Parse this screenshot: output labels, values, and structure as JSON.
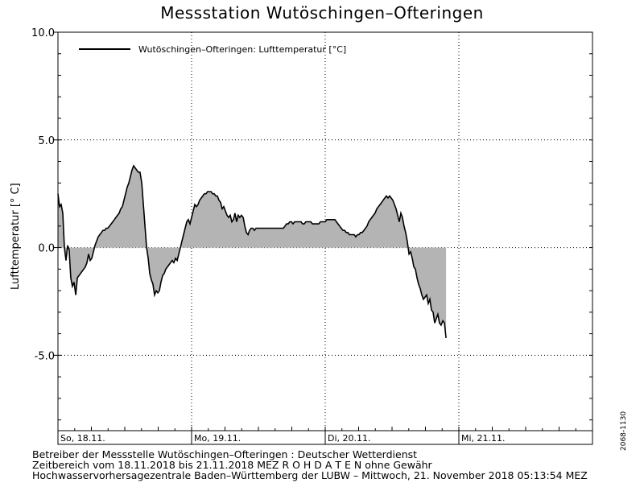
{
  "title": "Messstation Wutöschingen–Ofteringen",
  "chart_data": {
    "type": "area",
    "ylabel": "Lufttemperatur [° C]",
    "ylim": [
      -8.5,
      10.0
    ],
    "yticks": [
      {
        "value": 10.0,
        "label": "10.0"
      },
      {
        "value": 5.0,
        "label": "5.0"
      },
      {
        "value": 0.0,
        "label": "0.0"
      },
      {
        "value": -5.0,
        "label": "-5.0"
      }
    ],
    "xlim": [
      0,
      4.0
    ],
    "x_unit": "days since So, 18.11. 00:00 (MEZ)",
    "day_labels": [
      {
        "x": 0,
        "label": "So, 18.11."
      },
      {
        "x": 1,
        "label": "Mo, 19.11."
      },
      {
        "x": 2,
        "label": "Di, 20.11."
      },
      {
        "x": 3,
        "label": "Mi, 21.11."
      }
    ],
    "grid": true,
    "legend": {
      "position": "top-left",
      "entries": [
        "Wutöschingen–Ofteringen: Lufttemperatur  [°C]"
      ]
    },
    "series": [
      {
        "name": "Wutöschingen–Ofteringen: Lufttemperatur  [°C]",
        "fill": "#b4b4b4",
        "values": [
          [
            0.0,
            2.5
          ],
          [
            0.012,
            1.9
          ],
          [
            0.024,
            2.0
          ],
          [
            0.036,
            1.6
          ],
          [
            0.048,
            0.0
          ],
          [
            0.06,
            -0.6
          ],
          [
            0.072,
            0.1
          ],
          [
            0.084,
            -0.1
          ],
          [
            0.096,
            -1.4
          ],
          [
            0.108,
            -1.8
          ],
          [
            0.12,
            -1.6
          ],
          [
            0.133,
            -2.2
          ],
          [
            0.145,
            -1.4
          ],
          [
            0.157,
            -1.3
          ],
          [
            0.169,
            -1.2
          ],
          [
            0.181,
            -1.1
          ],
          [
            0.193,
            -1.0
          ],
          [
            0.205,
            -0.9
          ],
          [
            0.217,
            -0.7
          ],
          [
            0.229,
            -0.3
          ],
          [
            0.241,
            -0.6
          ],
          [
            0.253,
            -0.5
          ],
          [
            0.265,
            -0.2
          ],
          [
            0.277,
            0.1
          ],
          [
            0.289,
            0.3
          ],
          [
            0.301,
            0.5
          ],
          [
            0.313,
            0.6
          ],
          [
            0.325,
            0.7
          ],
          [
            0.337,
            0.8
          ],
          [
            0.349,
            0.8
          ],
          [
            0.361,
            0.9
          ],
          [
            0.373,
            0.9
          ],
          [
            0.386,
            1.0
          ],
          [
            0.398,
            1.1
          ],
          [
            0.41,
            1.2
          ],
          [
            0.422,
            1.3
          ],
          [
            0.434,
            1.4
          ],
          [
            0.446,
            1.5
          ],
          [
            0.458,
            1.6
          ],
          [
            0.47,
            1.8
          ],
          [
            0.482,
            1.9
          ],
          [
            0.494,
            2.2
          ],
          [
            0.506,
            2.5
          ],
          [
            0.518,
            2.8
          ],
          [
            0.53,
            3.0
          ],
          [
            0.542,
            3.3
          ],
          [
            0.554,
            3.6
          ],
          [
            0.566,
            3.8
          ],
          [
            0.578,
            3.7
          ],
          [
            0.59,
            3.6
          ],
          [
            0.602,
            3.5
          ],
          [
            0.614,
            3.5
          ],
          [
            0.627,
            3.0
          ],
          [
            0.639,
            2.0
          ],
          [
            0.651,
            1.0
          ],
          [
            0.663,
            0.0
          ],
          [
            0.675,
            -0.5
          ],
          [
            0.687,
            -1.2
          ],
          [
            0.699,
            -1.5
          ],
          [
            0.711,
            -1.7
          ],
          [
            0.723,
            -2.2
          ],
          [
            0.735,
            -2.0
          ],
          [
            0.747,
            -2.1
          ],
          [
            0.759,
            -2.0
          ],
          [
            0.771,
            -1.6
          ],
          [
            0.783,
            -1.3
          ],
          [
            0.795,
            -1.2
          ],
          [
            0.807,
            -1.0
          ],
          [
            0.819,
            -0.9
          ],
          [
            0.831,
            -0.8
          ],
          [
            0.843,
            -0.7
          ],
          [
            0.855,
            -0.6
          ],
          [
            0.867,
            -0.7
          ],
          [
            0.88,
            -0.5
          ],
          [
            0.892,
            -0.6
          ],
          [
            0.904,
            -0.3
          ],
          [
            0.916,
            0.0
          ],
          [
            0.928,
            0.3
          ],
          [
            0.94,
            0.6
          ],
          [
            0.952,
            0.9
          ],
          [
            0.964,
            1.2
          ],
          [
            0.976,
            1.3
          ],
          [
            0.988,
            1.1
          ],
          [
            1.0,
            1.4
          ],
          [
            1.012,
            1.7
          ],
          [
            1.024,
            2.0
          ],
          [
            1.036,
            1.9
          ],
          [
            1.048,
            2.0
          ],
          [
            1.06,
            2.2
          ],
          [
            1.072,
            2.3
          ],
          [
            1.084,
            2.4
          ],
          [
            1.096,
            2.5
          ],
          [
            1.108,
            2.5
          ],
          [
            1.12,
            2.6
          ],
          [
            1.133,
            2.6
          ],
          [
            1.145,
            2.6
          ],
          [
            1.157,
            2.5
          ],
          [
            1.169,
            2.5
          ],
          [
            1.181,
            2.4
          ],
          [
            1.193,
            2.4
          ],
          [
            1.205,
            2.2
          ],
          [
            1.217,
            2.1
          ],
          [
            1.229,
            1.8
          ],
          [
            1.241,
            1.9
          ],
          [
            1.253,
            1.7
          ],
          [
            1.265,
            1.5
          ],
          [
            1.277,
            1.4
          ],
          [
            1.289,
            1.5
          ],
          [
            1.301,
            1.2
          ],
          [
            1.313,
            1.3
          ],
          [
            1.325,
            1.6
          ],
          [
            1.337,
            1.2
          ],
          [
            1.349,
            1.5
          ],
          [
            1.361,
            1.4
          ],
          [
            1.373,
            1.5
          ],
          [
            1.386,
            1.4
          ],
          [
            1.398,
            1.0
          ],
          [
            1.41,
            0.7
          ],
          [
            1.422,
            0.6
          ],
          [
            1.434,
            0.8
          ],
          [
            1.446,
            0.9
          ],
          [
            1.458,
            0.9
          ],
          [
            1.47,
            0.8
          ],
          [
            1.482,
            0.9
          ],
          [
            1.494,
            0.9
          ],
          [
            1.506,
            0.9
          ],
          [
            1.518,
            0.9
          ],
          [
            1.53,
            0.9
          ],
          [
            1.542,
            0.9
          ],
          [
            1.554,
            0.9
          ],
          [
            1.566,
            0.9
          ],
          [
            1.578,
            0.9
          ],
          [
            1.59,
            0.9
          ],
          [
            1.602,
            0.9
          ],
          [
            1.614,
            0.9
          ],
          [
            1.627,
            0.9
          ],
          [
            1.639,
            0.9
          ],
          [
            1.651,
            0.9
          ],
          [
            1.663,
            0.9
          ],
          [
            1.675,
            0.9
          ],
          [
            1.687,
            0.9
          ],
          [
            1.699,
            1.0
          ],
          [
            1.711,
            1.1
          ],
          [
            1.723,
            1.1
          ],
          [
            1.735,
            1.2
          ],
          [
            1.747,
            1.2
          ],
          [
            1.759,
            1.1
          ],
          [
            1.771,
            1.2
          ],
          [
            1.783,
            1.2
          ],
          [
            1.795,
            1.2
          ],
          [
            1.807,
            1.2
          ],
          [
            1.819,
            1.2
          ],
          [
            1.831,
            1.1
          ],
          [
            1.843,
            1.1
          ],
          [
            1.855,
            1.2
          ],
          [
            1.867,
            1.2
          ],
          [
            1.88,
            1.2
          ],
          [
            1.892,
            1.2
          ],
          [
            1.904,
            1.1
          ],
          [
            1.916,
            1.1
          ],
          [
            1.928,
            1.1
          ],
          [
            1.94,
            1.1
          ],
          [
            1.952,
            1.1
          ],
          [
            1.964,
            1.2
          ],
          [
            1.976,
            1.2
          ],
          [
            1.988,
            1.2
          ],
          [
            2.0,
            1.2
          ],
          [
            2.012,
            1.3
          ],
          [
            2.024,
            1.3
          ],
          [
            2.036,
            1.3
          ],
          [
            2.048,
            1.3
          ],
          [
            2.06,
            1.3
          ],
          [
            2.072,
            1.3
          ],
          [
            2.084,
            1.2
          ],
          [
            2.096,
            1.1
          ],
          [
            2.108,
            1.0
          ],
          [
            2.12,
            0.9
          ],
          [
            2.133,
            0.8
          ],
          [
            2.145,
            0.8
          ],
          [
            2.157,
            0.7
          ],
          [
            2.169,
            0.7
          ],
          [
            2.181,
            0.6
          ],
          [
            2.193,
            0.6
          ],
          [
            2.205,
            0.6
          ],
          [
            2.217,
            0.6
          ],
          [
            2.229,
            0.5
          ],
          [
            2.241,
            0.6
          ],
          [
            2.253,
            0.6
          ],
          [
            2.265,
            0.7
          ],
          [
            2.277,
            0.7
          ],
          [
            2.289,
            0.8
          ],
          [
            2.301,
            0.9
          ],
          [
            2.313,
            1.0
          ],
          [
            2.325,
            1.2
          ],
          [
            2.337,
            1.3
          ],
          [
            2.349,
            1.4
          ],
          [
            2.361,
            1.5
          ],
          [
            2.373,
            1.6
          ],
          [
            2.386,
            1.8
          ],
          [
            2.398,
            1.9
          ],
          [
            2.41,
            2.0
          ],
          [
            2.422,
            2.1
          ],
          [
            2.434,
            2.2
          ],
          [
            2.446,
            2.3
          ],
          [
            2.458,
            2.4
          ],
          [
            2.47,
            2.3
          ],
          [
            2.482,
            2.4
          ],
          [
            2.494,
            2.3
          ],
          [
            2.506,
            2.2
          ],
          [
            2.518,
            2.0
          ],
          [
            2.53,
            1.8
          ],
          [
            2.542,
            1.5
          ],
          [
            2.554,
            1.2
          ],
          [
            2.566,
            1.6
          ],
          [
            2.578,
            1.4
          ],
          [
            2.59,
            1.0
          ],
          [
            2.602,
            0.7
          ],
          [
            2.614,
            0.3
          ],
          [
            2.627,
            -0.3
          ],
          [
            2.639,
            -0.2
          ],
          [
            2.651,
            -0.5
          ],
          [
            2.663,
            -0.9
          ],
          [
            2.675,
            -1.0
          ],
          [
            2.687,
            -1.4
          ],
          [
            2.699,
            -1.7
          ],
          [
            2.711,
            -1.9
          ],
          [
            2.723,
            -2.2
          ],
          [
            2.735,
            -2.4
          ],
          [
            2.747,
            -2.3
          ],
          [
            2.759,
            -2.2
          ],
          [
            2.771,
            -2.6
          ],
          [
            2.783,
            -2.4
          ],
          [
            2.795,
            -2.9
          ],
          [
            2.807,
            -3.0
          ],
          [
            2.819,
            -3.5
          ],
          [
            2.831,
            -3.3
          ],
          [
            2.843,
            -3.1
          ],
          [
            2.855,
            -3.5
          ],
          [
            2.867,
            -3.6
          ],
          [
            2.88,
            -3.4
          ],
          [
            2.892,
            -3.5
          ],
          [
            2.904,
            -4.2
          ]
        ]
      }
    ]
  },
  "footer": {
    "line1": "Betreiber der Messstelle Wutöschingen–Ofteringen : Deutscher Wetterdienst",
    "line2": "Zeitbereich vom 18.11.2018 bis 21.11.2018    MEZ    R O H D A T E N  ohne Gewähr",
    "line3": "Hochwasservorhersagezentrale Baden–Württemberg der LUBW – Mittwoch, 21. November 2018 05:13:54 MEZ"
  },
  "side_id": "2068-1130"
}
